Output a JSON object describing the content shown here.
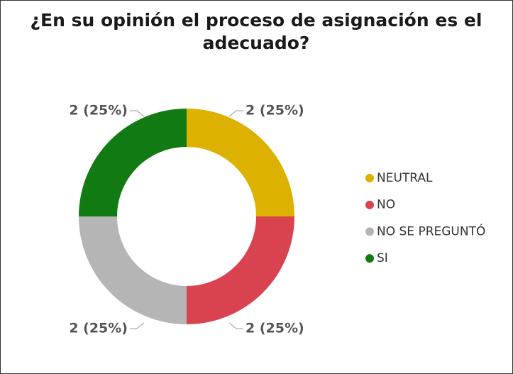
{
  "chart_data": {
    "type": "donut",
    "title": "¿En su opinión el proceso de asignación es el adecuado?",
    "categories": [
      "NEUTRAL",
      "NO",
      "NO SE PREGUNTÓ",
      "SI"
    ],
    "values": [
      2,
      2,
      2,
      2
    ],
    "value_labels": [
      "2 (25%)",
      "2 (25%)",
      "2 (25%)",
      "2 (25%)"
    ],
    "colors": [
      "#DDB100",
      "#D9434F",
      "#B5B5B5",
      "#127A12"
    ],
    "legend": "right"
  }
}
